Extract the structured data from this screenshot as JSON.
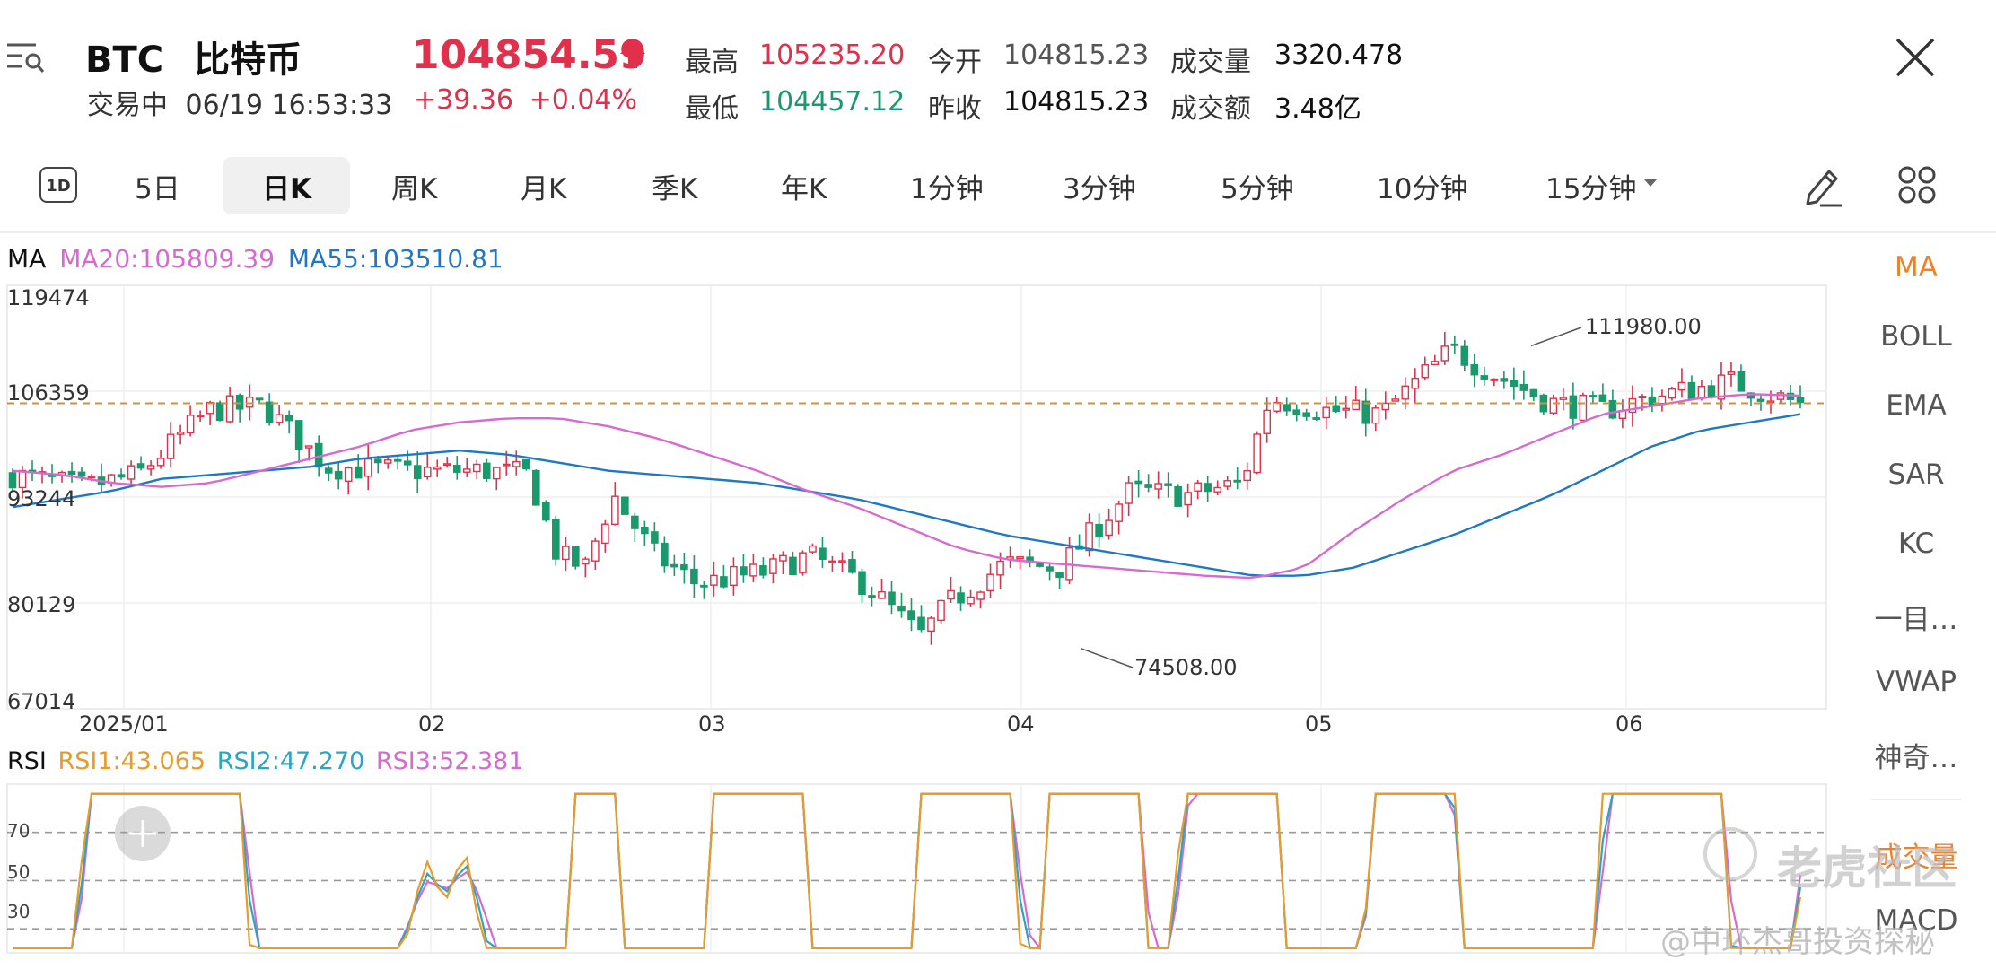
{
  "header": {
    "symbol": "BTC",
    "name": "比特币",
    "status": "交易中",
    "datetime": "06/19 16:53:33",
    "price": "104854.59",
    "change": "+39.36",
    "change_pct": "+0.04%",
    "stats": {
      "high_label": "最高",
      "high": "105235.20",
      "open_label": "今开",
      "open": "104815.23",
      "volume_label": "成交量",
      "volume": "3320.478",
      "low_label": "最低",
      "low": "104457.12",
      "prev_close_label": "昨收",
      "prev_close": "104815.23",
      "amount_label": "成交额",
      "amount": "3.48亿"
    }
  },
  "tabs": {
    "oned": "1D",
    "items": [
      "5日",
      "日K",
      "周K",
      "月K",
      "季K",
      "年K",
      "1分钟",
      "3分钟",
      "5分钟",
      "10分钟",
      "15分钟"
    ],
    "active": "日K"
  },
  "main_chart": {
    "indicator": "MA",
    "ma20": "MA20:105809.39",
    "ma55": "MA55:103510.81",
    "y_ticks": [
      "119474",
      "106359",
      "93244",
      "80129",
      "67014"
    ],
    "x_ticks": [
      "2025/01",
      "02",
      "03",
      "04",
      "05",
      "06"
    ],
    "high_annotation": "111980.00",
    "low_annotation": "74508.00"
  },
  "rsi_chart": {
    "indicator": "RSI",
    "rsi1": "RSI1:43.065",
    "rsi2": "RSI2:47.270",
    "rsi3": "RSI3:52.381",
    "ticks": [
      "70",
      "50",
      "30"
    ]
  },
  "side_indicators": {
    "items": [
      "MA",
      "BOLL",
      "EMA",
      "SAR",
      "KC",
      "一目…",
      "VWAP",
      "神奇…",
      "成交量",
      "MACD"
    ],
    "active": "MA"
  },
  "watermarks": {
    "brand": "老虎社区",
    "author": "@中环杰哥投资探秘"
  },
  "colors": {
    "up": "#e0304b",
    "down": "#1a9a6c",
    "ma20": "#d66ad0",
    "ma55": "#1f78c4",
    "rsi1": "#e79b2a",
    "rsi2": "#2aa6c2",
    "rsi3": "#d66ad0",
    "active_side": "#f0802a"
  },
  "chart_data": [
    {
      "type": "candlestick",
      "title": "",
      "x_range": [
        "2024-12-19",
        "2025-06-19"
      ],
      "ylim": [
        67014,
        119474
      ],
      "annotations": [
        {
          "label": "111980.00",
          "date": "2025-05-22",
          "value": 111980.0
        },
        {
          "label": "74508.00",
          "date": "2025-04-07",
          "value": 74508.0
        }
      ],
      "ma20": [
        96500,
        96000,
        95000,
        94500,
        95000,
        96500,
        98000,
        99500,
        101500,
        102500,
        103000,
        103000,
        102000,
        100500,
        98500,
        96500,
        94000,
        92000,
        89500,
        87000,
        85500,
        85000,
        84500,
        84000,
        83500,
        83200,
        84500,
        89000,
        93000,
        96500,
        98500,
        101000,
        103500,
        104500,
        105500,
        106000,
        105809.39
      ],
      "ma55": [
        92000,
        93000,
        94000,
        95500,
        96000,
        96500,
        97000,
        98000,
        98500,
        99000,
        98500,
        97500,
        96500,
        96000,
        95500,
        95000,
        94000,
        93000,
        91500,
        90000,
        88500,
        87500,
        86500,
        85500,
        84500,
        83500,
        83500,
        84500,
        86500,
        88500,
        91000,
        93500,
        96500,
        99500,
        101500,
        102500,
        103510.81
      ],
      "last": 104854.59
    },
    {
      "type": "line",
      "title": "",
      "ylim": [
        20,
        90
      ],
      "reference_lines": [
        70,
        50,
        30
      ],
      "series": [
        {
          "name": "RSI1",
          "last": 43.065
        },
        {
          "name": "RSI2",
          "last": 47.27
        },
        {
          "name": "RSI3",
          "last": 52.381
        }
      ]
    }
  ]
}
